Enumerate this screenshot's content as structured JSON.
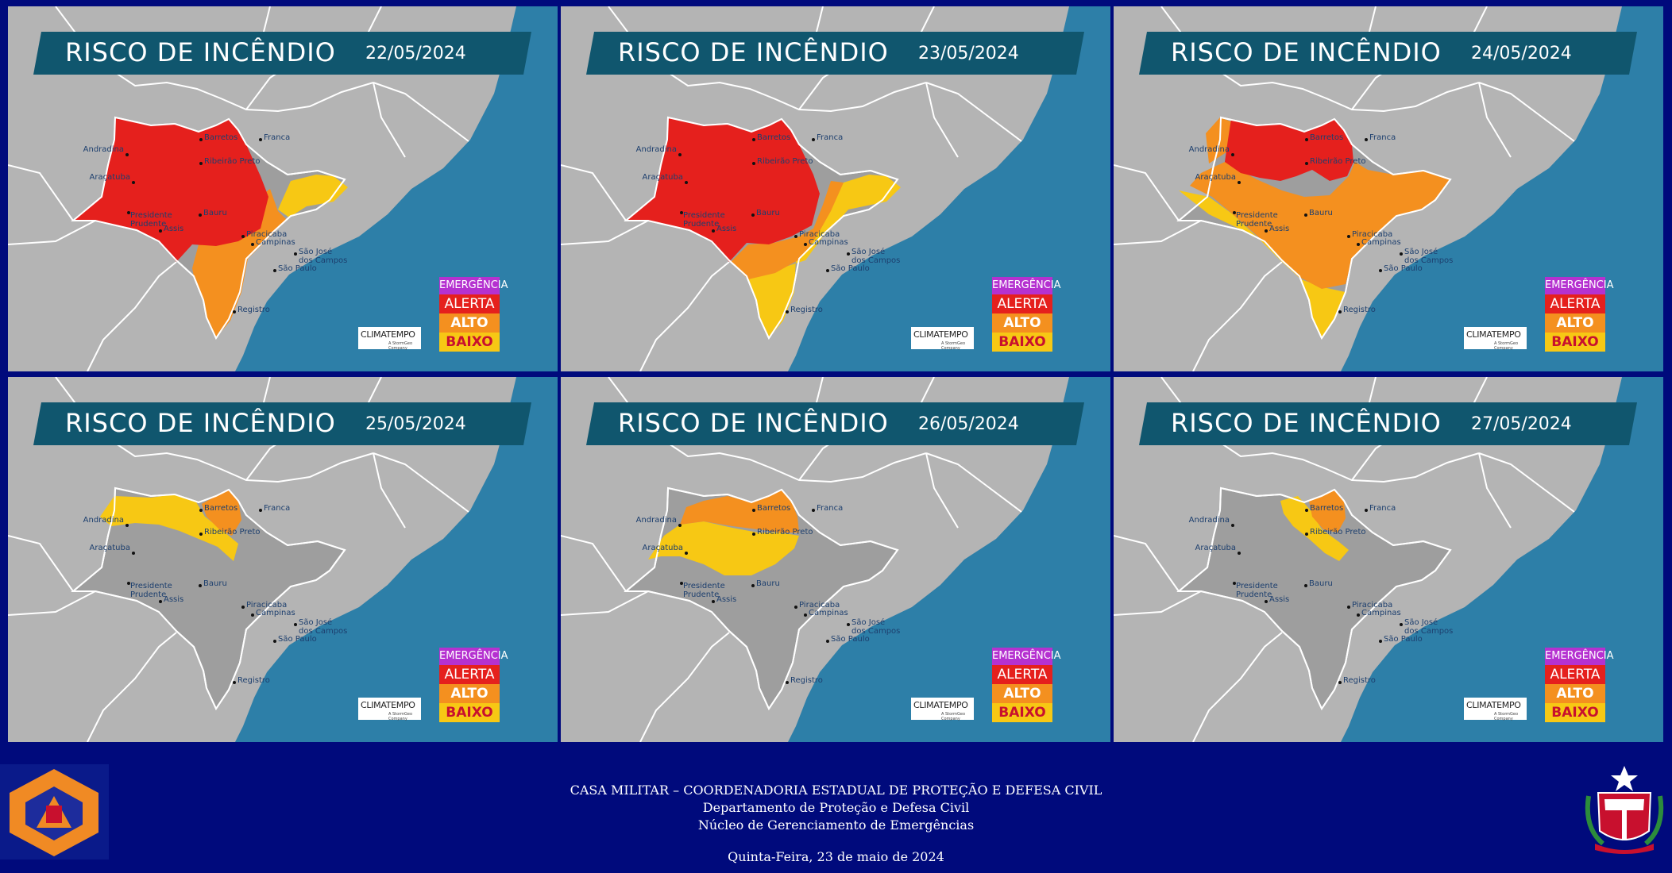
{
  "panels": [
    {
      "title": "RISCO DE INCÊNDIO",
      "date": "22/05/2024",
      "scenario": "d1"
    },
    {
      "title": "RISCO DE INCÊNDIO",
      "date": "23/05/2024",
      "scenario": "d2"
    },
    {
      "title": "RISCO DE INCÊNDIO",
      "date": "24/05/2024",
      "scenario": "d3"
    },
    {
      "title": "RISCO DE INCÊNDIO",
      "date": "25/05/2024",
      "scenario": "d4"
    },
    {
      "title": "RISCO DE INCÊNDIO",
      "date": "26/05/2024",
      "scenario": "d5"
    },
    {
      "title": "RISCO DE INCÊNDIO",
      "date": "27/05/2024",
      "scenario": "d6"
    }
  ],
  "legend": {
    "emergencia": "EMERGÊNCIA",
    "alerta": "ALERTA",
    "alto": "ALTO",
    "baixo": "BAIXO"
  },
  "legend_colors": {
    "emergencia": "#b531d0",
    "alerta": "#e5201d",
    "alto": "#f4901f",
    "baixo": "#f7c814"
  },
  "provider": {
    "name": "CLIMATEMPO",
    "sub": "A StormGeo Company"
  },
  "cities": [
    {
      "name": "Barretos"
    },
    {
      "name": "Franca"
    },
    {
      "name": "Andradina"
    },
    {
      "name": "Ribeirão Preto"
    },
    {
      "name": "Araçatuba"
    },
    {
      "name": "Presidente Prudente"
    },
    {
      "name": "Bauru"
    },
    {
      "name": "Assis"
    },
    {
      "name": "Piracicaba"
    },
    {
      "name": "Campinas"
    },
    {
      "name": "São José dos Campos"
    },
    {
      "name": "São Paulo"
    },
    {
      "name": "Registro"
    }
  ],
  "footer": {
    "line1": "CASA MILITAR – COORDENADORIA ESTADUAL DE PROTEÇÃO E DEFESA CIVIL",
    "line2": "Departamento de Proteção e Defesa Civil",
    "line3": "Núcleo de Gerenciamento de Emergências",
    "date": "Quinta-Feira, 23 de maio de 2024"
  }
}
